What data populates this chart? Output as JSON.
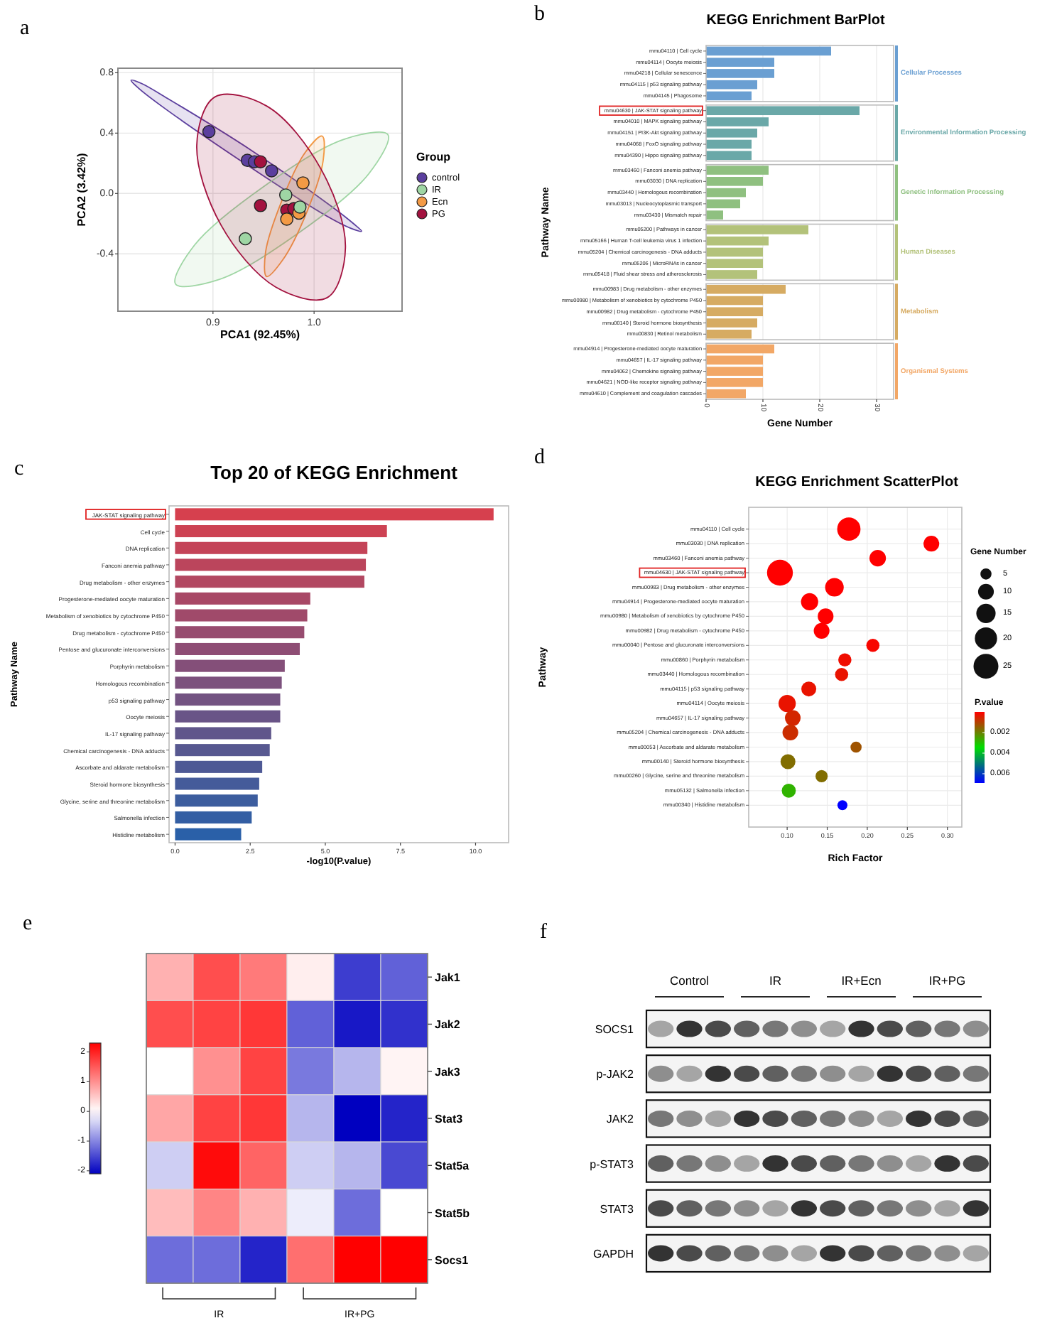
{
  "chart_data": [
    {
      "type": "scatter",
      "xlabel": "PCA1 (92.45%)",
      "ylabel": "PCA2 (3.42%)",
      "legend_title": "Group",
      "legend": "right",
      "grid": true,
      "marker": "circle",
      "annotations": [
        "a"
      ],
      "xlim": [
        0.806,
        1.087
      ],
      "ylim": [
        -0.78,
        0.83
      ],
      "xticks": [
        0.9,
        {
          "value": 1,
          "label": "1.0"
        }
      ],
      "yticks": [
        -0.4,
        {
          "value": 0,
          "label": "0.0"
        },
        0.4,
        0.8
      ],
      "series": [
        {
          "name": "control",
          "color": "#5b3f9e",
          "x": [
            0.896,
            0.934,
            0.941,
            0.958
          ],
          "values": [
            0.41,
            0.22,
            0.21,
            0.15
          ]
        },
        {
          "name": "IR",
          "color": "#9fd6a4",
          "x": [
            0.972,
            0.932,
            0.986
          ],
          "values": [
            -0.01,
            -0.3,
            -0.09
          ]
        },
        {
          "name": "Ecn",
          "color": "#f39a45",
          "x": [
            0.989,
            0.973,
            0.985
          ],
          "values": [
            0.07,
            -0.17,
            -0.13
          ]
        },
        {
          "name": "PG",
          "color": "#a3123f",
          "x": [
            0.947,
            0.947,
            0.973,
            0.98
          ],
          "values": [
            0.21,
            -0.08,
            -0.11,
            -0.1
          ]
        },
        {
          "type": "area",
          "marker": "none",
          "color": "#5b3f9e",
          "x": [
            1.047,
            1.036,
            1.01,
            0.929,
            0.849,
            0.826,
            0.819,
            0.829,
            0.855,
            0.937,
            1.016,
            1.039
          ],
          "values": [
            -0.25,
            -0.23,
            -0.14,
            0.21,
            0.58,
            0.7,
            0.75,
            0.73,
            0.63,
            0.29,
            -0.08,
            -0.2
          ]
        },
        {
          "type": "area",
          "marker": "none",
          "color": "#9fd6a4",
          "x": [
            1.073,
            1.054,
            0.985,
            0.906,
            0.863,
            0.882,
            0.951,
            1.03
          ],
          "values": [
            0.39,
            0.13,
            -0.26,
            -0.57,
            -0.6,
            -0.34,
            0.05,
            0.36
          ]
        },
        {
          "type": "area",
          "marker": "none",
          "color": "#f39a45",
          "x": [
            0.953,
            0.969,
            0.993,
            1.009,
            1.008,
            0.991,
            0.968,
            0.952
          ],
          "values": [
            -0.55,
            -0.44,
            -0.12,
            0.22,
            0.38,
            0.27,
            -0.05,
            -0.39
          ]
        },
        {
          "type": "area",
          "marker": "none",
          "color": "#a3123f",
          "x": [
            1.013,
            0.962,
            0.908,
            0.884,
            0.902,
            0.953,
            1.007,
            1.031
          ],
          "values": [
            -0.69,
            -0.62,
            -0.21,
            0.32,
            0.64,
            0.58,
            0.16,
            -0.36
          ]
        }
      ]
    },
    {
      "type": "bar",
      "orientation": "horizontal",
      "title": "KEGG Enrichment BarPlot",
      "xlabel": "Gene Number",
      "ylabel": "Pathway Name",
      "annotations": [
        "b"
      ],
      "xlim": [
        0,
        33
      ],
      "xticks": [
        0,
        10,
        20,
        30
      ],
      "grid": "x",
      "categories": [
        "mmu04110 | Cell cycle",
        "mmu04114 | Oocyte meiosis",
        "mmu04218 | Cellular senescence",
        "mmu04115 | p53 signaling pathway",
        "mmu04145 | Phagosome",
        "mmu04630 | JAK-STAT signaling pathway",
        "mmu04010 | MAPK signaling pathway",
        "mmu04151 | PI3K-Akt signaling pathway",
        "mmu04068 | FoxO signaling pathway",
        "mmu04390 | Hippo signaling pathway",
        "mmu03460 | Fanconi anemia pathway",
        "mmu03030 | DNA replication",
        "mmu03440 | Homologous recombination",
        "mmu03013 | Nucleocytoplasmic transport",
        "mmu03430 | Mismatch repair",
        "mmu05200 | Pathways in cancer",
        "mmu05166 | Human T-cell leukemia virus 1 infection",
        "mmu05204 | Chemical carcinogenesis - DNA adducts",
        "mmu05206 | MicroRNAs in cancer",
        "mmu05418 | Fluid shear stress and atherosclerosis",
        "mmu00983 | Drug metabolism - other enzymes",
        "mmu00980 | Metabolism of xenobiotics by cytochrome P450",
        "mmu00982 | Drug metabolism - cytochrome P450",
        "mmu00140 | Steroid hormone biosynthesis",
        "mmu00830 | Retinol metabolism",
        "mmu04914 | Progesterone-mediated oocyte maturation",
        "mmu04657 | IL-17 signaling pathway",
        "mmu04062 | Chemokine signaling pathway",
        "mmu04621 | NOD-like receptor signaling pathway",
        "mmu04610 | Complement and coagulation cascades"
      ],
      "series": [
        {
          "name": "Cellular Processes",
          "color": "#6a9fd2",
          "values": [
            22,
            12,
            12,
            9,
            8,
            null,
            null,
            null,
            null,
            null,
            null,
            null,
            null,
            null,
            null,
            null,
            null,
            null,
            null,
            null,
            null,
            null,
            null,
            null,
            null,
            null,
            null,
            null,
            null,
            null
          ]
        },
        {
          "name": "Environmental Information Processing",
          "color": "#6aa8a8",
          "values": [
            null,
            null,
            null,
            null,
            null,
            27,
            11,
            9,
            8,
            8,
            null,
            null,
            null,
            null,
            null,
            null,
            null,
            null,
            null,
            null,
            null,
            null,
            null,
            null,
            null,
            null,
            null,
            null,
            null,
            null
          ]
        },
        {
          "name": "Genetic Information Processing",
          "color": "#8fc080",
          "values": [
            null,
            null,
            null,
            null,
            null,
            null,
            null,
            null,
            null,
            null,
            11,
            10,
            7,
            6,
            3,
            null,
            null,
            null,
            null,
            null,
            null,
            null,
            null,
            null,
            null,
            null,
            null,
            null,
            null,
            null
          ]
        },
        {
          "name": "Human Diseases",
          "color": "#b3c27a",
          "values": [
            null,
            null,
            null,
            null,
            null,
            null,
            null,
            null,
            null,
            null,
            null,
            null,
            null,
            null,
            null,
            18,
            11,
            10,
            10,
            9,
            null,
            null,
            null,
            null,
            null,
            null,
            null,
            null,
            null,
            null
          ]
        },
        {
          "name": "Metabolism",
          "color": "#d6ab62",
          "values": [
            null,
            null,
            null,
            null,
            null,
            null,
            null,
            null,
            null,
            null,
            null,
            null,
            null,
            null,
            null,
            null,
            null,
            null,
            null,
            null,
            14,
            10,
            10,
            9,
            8,
            null,
            null,
            null,
            null,
            null
          ]
        },
        {
          "name": "Organismal Systems",
          "color": "#f2a766",
          "values": [
            null,
            null,
            null,
            null,
            null,
            null,
            null,
            null,
            null,
            null,
            null,
            null,
            null,
            null,
            null,
            null,
            null,
            null,
            null,
            null,
            null,
            null,
            null,
            null,
            null,
            12,
            10,
            10,
            10,
            7
          ]
        }
      ]
    },
    {
      "type": "bar",
      "orientation": "horizontal",
      "title": "Top 20 of KEGG Enrichment",
      "xlabel": "-log10(P.value)",
      "ylabel": "Pathway Name",
      "annotations": [
        "c"
      ],
      "xlim": [
        -0.2,
        11.1
      ],
      "xticks": [
        {
          "value": 0,
          "label": "0.0"
        },
        {
          "value": 2.5,
          "label": "2.5"
        },
        {
          "value": 5,
          "label": "5.0"
        },
        {
          "value": 7.5,
          "label": "7.5"
        },
        {
          "value": 10,
          "label": "10.0"
        }
      ],
      "categories": [
        "JAK-STAT signaling pathway",
        "Cell cycle",
        "DNA replication",
        "Fanconi anemia pathway",
        "Drug metabolism - other enzymes",
        "Progesterone-mediated oocyte maturation",
        "Metabolism of xenobiotics by cytochrome P450",
        "Drug metabolism - cytochrome P450",
        "Pentose and glucuronate interconversions",
        "Porphyrin metabolism",
        "Homologous recombination",
        "p53 signaling pathway",
        "Oocyte meiosis",
        "IL-17 signaling pathway",
        "Chemical carcinogenesis - DNA adducts",
        "Ascorbate and aldarate metabolism",
        "Steroid hormone biosynthesis",
        "Glycine, serine and threonine metabolism",
        "Salmonella infection",
        "Histidine metabolism"
      ],
      "values": [
        10.6,
        7.05,
        6.4,
        6.35,
        6.3,
        4.5,
        4.4,
        4.3,
        4.15,
        3.65,
        3.55,
        3.5,
        3.5,
        3.2,
        3.15,
        2.9,
        2.8,
        2.75,
        2.55,
        2.2
      ],
      "colors": [
        "#d6404e",
        "#cd4253",
        "#c44458",
        "#bb455c",
        "#b24761",
        "#a84866",
        "#a04a6a",
        "#974c6f",
        "#8e4d74",
        "#844f79",
        "#7c517d",
        "#735382",
        "#695487",
        "#60568b",
        "#575890",
        "#4e5995",
        "#455b9a",
        "#3c5d9e",
        "#335ea3",
        "#2a60a8"
      ]
    },
    {
      "type": "bubble",
      "orientation": "horizontal",
      "title": "KEGG Enrichment ScatterPlot",
      "xlabel": "Rich Factor",
      "ylabel": "Pathway",
      "annotations": [
        "d"
      ],
      "grid": true,
      "legend_title": "Gene Number",
      "size_legend": [
        5,
        10,
        15,
        20,
        25
      ],
      "clabel": "P.value",
      "clim": [
        0,
        0.0069
      ],
      "cticks": [
        0.002,
        0.004,
        0.006
      ],
      "xlim": [
        0.052,
        0.318
      ],
      "xticks": [
        {
          "value": 0.1,
          "label": "0.10"
        },
        {
          "value": 0.15,
          "label": "0.15"
        },
        {
          "value": 0.2,
          "label": "0.20"
        },
        {
          "value": 0.25,
          "label": "0.25"
        },
        {
          "value": 0.3,
          "label": "0.30"
        }
      ],
      "categories": [
        "mmu04110 | Cell cycle",
        "mmu03030 | DNA replication",
        "mmu03460 | Fanconi anemia pathway",
        "mmu04630 | JAK-STAT signaling pathway",
        "mmu00983 | Drug metabolism - other enzymes",
        "mmu04914 | Progesterone-mediated oocyte maturation",
        "mmu00980 | Metabolism of xenobiotics by cytochrome P450",
        "mmu00982 | Drug metabolism - cytochrome P450",
        "mmu00040 | Pentose and glucuronate interconversions",
        "mmu00860 | Porphyrin metabolism",
        "mmu03440 | Homologous recombination",
        "mmu04115 | p53 signaling pathway",
        "mmu04114 | Oocyte meiosis",
        "mmu04657 | IL-17 signaling pathway",
        "mmu05204 | Chemical carcinogenesis - DNA adducts",
        "mmu00053 | Ascorbate and aldarate metabolism",
        "mmu00140 | Steroid hormone biosynthesis",
        "mmu00260 | Glycine, serine and threonine metabolism",
        "mmu05132 | Salmonella infection",
        "mmu00340 | Histidine metabolism"
      ],
      "values": [
        0.177,
        0.28,
        0.213,
        0.091,
        0.159,
        0.128,
        0.148,
        0.143,
        0.207,
        0.172,
        0.168,
        0.127,
        0.1,
        0.107,
        0.104,
        0.186,
        0.101,
        0.143,
        0.102,
        0.169
      ],
      "sizes": [
        22,
        10,
        11,
        27,
        14,
        12,
        10,
        10,
        7,
        7,
        7,
        9,
        12,
        10,
        10,
        5,
        9,
        6,
        8,
        4
      ],
      "cvalues": [
        0,
        0,
        0,
        0,
        0,
        0,
        0,
        0,
        0.0001,
        0.0002,
        0.0003,
        0.0003,
        0.0003,
        0.0006,
        0.0007,
        0.0013,
        0.0017,
        0.0017,
        0.0028,
        0.0069
      ]
    },
    {
      "type": "heatmap",
      "annotations": [
        "e",
        "IR",
        "IR+PG"
      ],
      "categories": [
        null,
        null,
        null,
        null,
        null,
        null
      ],
      "y_categories": [
        "Jak1",
        "Jak2",
        "Jak3",
        "Stat3",
        "Stat5a",
        "Stat5b",
        "Socs1"
      ],
      "clim": [
        -2.1,
        2.3
      ],
      "cticks": [
        -2,
        -1,
        0,
        1,
        2
      ],
      "cells": [
        [
          0.7,
          1.6,
          1.2,
          0.15,
          -1.6,
          -1.3
        ],
        [
          1.6,
          1.7,
          1.8,
          -1.3,
          -1.9,
          -1.7
        ],
        [
          0,
          1,
          1.7,
          -1.1,
          -0.6,
          0.1
        ],
        [
          0.8,
          1.7,
          1.8,
          -0.6,
          -2.1,
          -1.8
        ],
        [
          -0.4,
          2.2,
          1.4,
          -0.4,
          -0.6,
          -1.5
        ],
        [
          0.6,
          1.1,
          0.7,
          -0.15,
          -1.2,
          0
        ],
        [
          -1.2,
          -1.2,
          -1.8,
          1.3,
          2.3,
          2.3
        ]
      ]
    },
    {
      "type": "other",
      "annotations": [
        "f"
      ],
      "categories": [
        "Control",
        "IR",
        "IR+Ecn",
        "IR+PG"
      ],
      "y_categories": [
        "SOCS1",
        "p-JAK2",
        "JAK2",
        "p-STAT3",
        "STAT3",
        "GAPDH"
      ]
    }
  ]
}
